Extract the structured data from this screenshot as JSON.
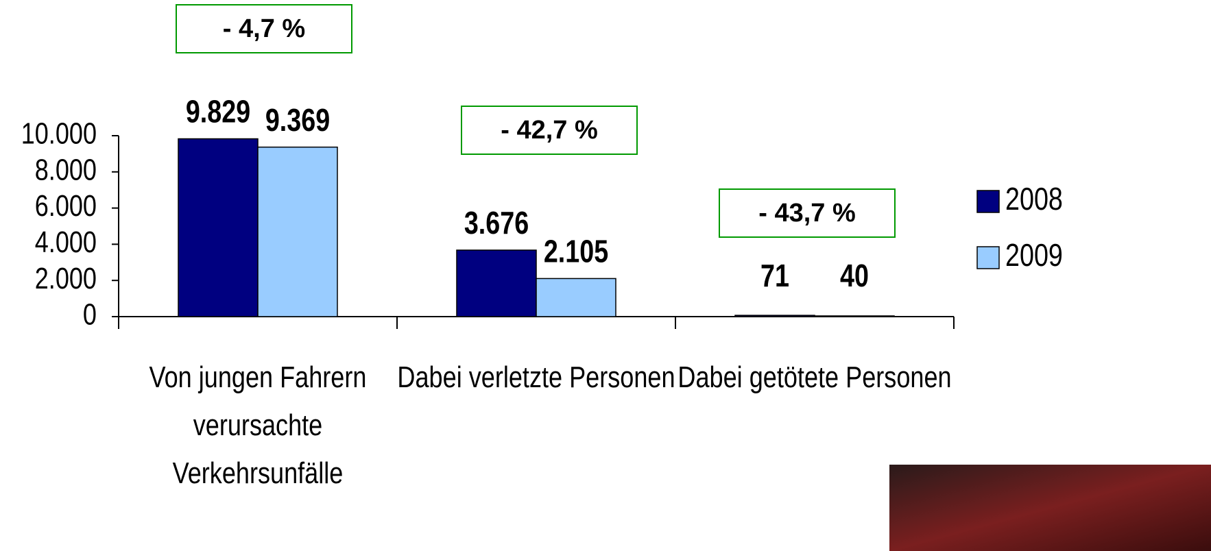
{
  "chart_data": {
    "type": "bar",
    "categories": [
      "Von jungen Fahrern verursachte Verkehrsunfälle",
      "Dabei verletzte Personen",
      "Dabei getötete Personen"
    ],
    "series": [
      {
        "name": "2008",
        "color": "#000080",
        "values": [
          9829,
          3676,
          71
        ],
        "value_labels": [
          "9.829",
          "3.676",
          "71"
        ]
      },
      {
        "name": "2009",
        "color": "#99ccff",
        "values": [
          9369,
          2105,
          40
        ],
        "value_labels": [
          "9.369",
          "2.105",
          "40"
        ]
      }
    ],
    "ylim": [
      0,
      10000
    ],
    "yticks": [
      {
        "value": 0,
        "label": "0"
      },
      {
        "value": 2000,
        "label": "2.000"
      },
      {
        "value": 4000,
        "label": "4.000"
      },
      {
        "value": 6000,
        "label": "6.000"
      },
      {
        "value": 8000,
        "label": "8.000"
      },
      {
        "value": 10000,
        "label": "10.000"
      }
    ],
    "annotations": [
      {
        "text": "- 4,7 %",
        "color": "#009900"
      },
      {
        "text": "- 42,7 %",
        "color": "#009900"
      },
      {
        "text": "- 43,7 %",
        "color": "#009900"
      }
    ],
    "legend": "right"
  }
}
